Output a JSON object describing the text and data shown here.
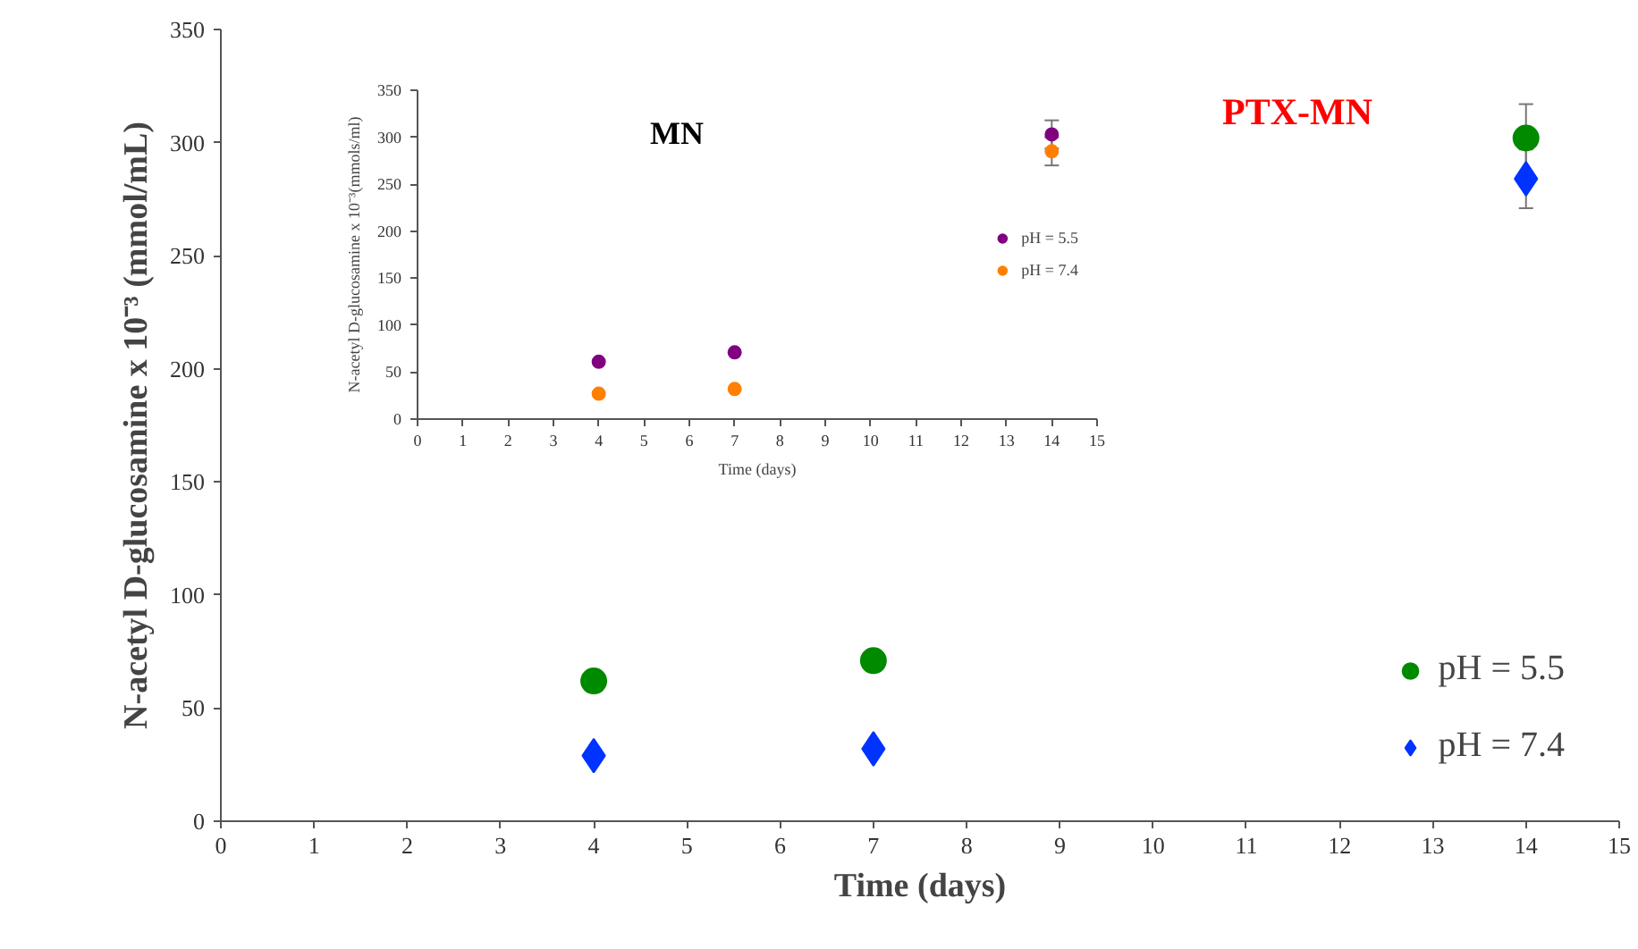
{
  "chart_data": [
    {
      "type": "scatter",
      "title": "PTX-MN",
      "xlabel": "Time (days)",
      "ylabel": "N-acetyl D-glucosamine x 10⁻³ (mmol/mL)",
      "xlim": [
        0,
        15
      ],
      "xticks": [
        0,
        1,
        2,
        3,
        4,
        5,
        6,
        7,
        8,
        9,
        10,
        11,
        12,
        13,
        14,
        15
      ],
      "ylim": [
        0,
        350
      ],
      "yticks": [
        0,
        50,
        100,
        150,
        200,
        250,
        300,
        350
      ],
      "grid": false,
      "legend": "bottom right",
      "series": [
        {
          "name": "pH = 5.5",
          "color": "#008a00",
          "marker": "circle",
          "x": [
            4,
            7,
            14
          ],
          "values": [
            62,
            71,
            302
          ],
          "errors": [
            null,
            null,
            [
              287,
              317
            ]
          ]
        },
        {
          "name": "pH = 7.4",
          "color": "#0033ff",
          "marker": "diamond",
          "x": [
            4,
            7,
            14
          ],
          "values": [
            29,
            32,
            284
          ],
          "errors": [
            null,
            null,
            [
              271,
              297
            ]
          ]
        }
      ]
    },
    {
      "type": "scatter",
      "title": "MN",
      "xlabel": "Time (days)",
      "ylabel": "N-acetyl D-glucosamine x 10⁻³(mmols/ml)",
      "xlim": [
        0,
        15
      ],
      "xticks": [
        0,
        1,
        2,
        3,
        4,
        5,
        6,
        7,
        8,
        9,
        10,
        11,
        12,
        13,
        14,
        15
      ],
      "ylim": [
        0,
        350
      ],
      "yticks": [
        0,
        50,
        100,
        150,
        200,
        250,
        300,
        350
      ],
      "grid": false,
      "legend": "right",
      "series": [
        {
          "name": "pH = 5.5",
          "color": "#800080",
          "marker": "circle",
          "x": [
            4,
            7,
            14
          ],
          "values": [
            61,
            71,
            303
          ],
          "errors": [
            null,
            null,
            [
              288,
              318
            ]
          ]
        },
        {
          "name": "pH = 7.4",
          "color": "#ff8000",
          "marker": "circle",
          "x": [
            4,
            7,
            14
          ],
          "values": [
            27,
            32,
            285
          ],
          "errors": [
            null,
            null,
            [
              270,
              300
            ]
          ]
        }
      ]
    }
  ]
}
